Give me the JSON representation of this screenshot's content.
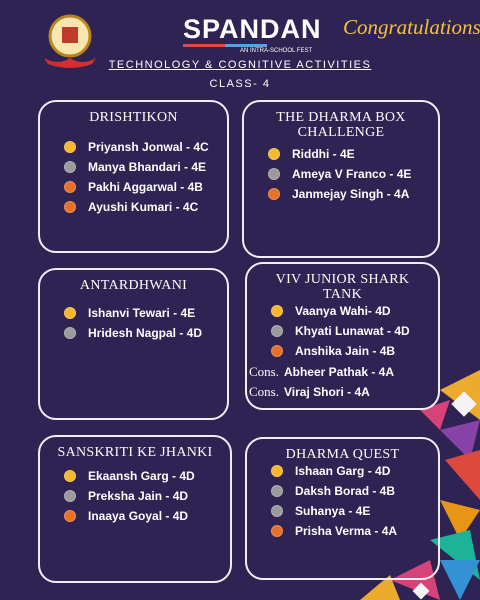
{
  "header": {
    "brand": "SPANDAN",
    "tagline": "AN INTRA-SCHOOL FEST",
    "greeting": "Congratulations!",
    "subtitle": "TECHNOLOGY & COGNITIVE ACTIVITIES",
    "class": "CLASS- 4"
  },
  "cards": [
    {
      "title": "DRISHTIKON",
      "entries": [
        {
          "medal": "gold",
          "name": "Priyansh Jonwal - 4C"
        },
        {
          "medal": "silver",
          "name": "Manya Bhandari - 4E"
        },
        {
          "medal": "bronze",
          "name": "Pakhi Aggarwal - 4B"
        },
        {
          "medal": "bronze",
          "name": "Ayushi Kumari - 4C"
        }
      ]
    },
    {
      "title": "THE DHARMA BOX CHALLENGE",
      "entries": [
        {
          "medal": "gold",
          "name": "Riddhi - 4E"
        },
        {
          "medal": "silver",
          "name": "Ameya V Franco - 4E"
        },
        {
          "medal": "bronze",
          "name": "Janmejay Singh - 4A"
        }
      ]
    },
    {
      "title": "ANTARDHWANI",
      "entries": [
        {
          "medal": "gold",
          "name": "Ishanvi Tewari - 4E"
        },
        {
          "medal": "silver",
          "name": "Hridesh Nagpal - 4D"
        }
      ]
    },
    {
      "title": "VIV JUNIOR SHARK TANK",
      "entries": [
        {
          "medal": "gold",
          "name": "Vaanya Wahi- 4D"
        },
        {
          "medal": "silver",
          "name": "Khyati Lunawat - 4D"
        },
        {
          "medal": "bronze",
          "name": "Anshika Jain - 4B"
        },
        {
          "prefix": "Cons.",
          "name": "Abheer Pathak - 4A"
        },
        {
          "prefix": "Cons.",
          "name": "Viraj Shori - 4A"
        }
      ]
    },
    {
      "title": "SANSKRITI KE JHANKI",
      "entries": [
        {
          "medal": "gold",
          "name": "Ekaansh Garg - 4D"
        },
        {
          "medal": "silver",
          "name": "Preksha Jain - 4D"
        },
        {
          "medal": "bronze",
          "name": "Inaaya Goyal - 4D"
        }
      ]
    },
    {
      "title": "DHARMA QUEST",
      "entries": [
        {
          "medal": "gold",
          "name": "Ishaan Garg - 4D"
        },
        {
          "medal": "silver",
          "name": "Daksh Borad - 4B"
        },
        {
          "medal": "silver",
          "name": "Suhanya - 4E"
        },
        {
          "medal": "bronze",
          "name": "Prisha Verma - 4A"
        }
      ]
    }
  ]
}
